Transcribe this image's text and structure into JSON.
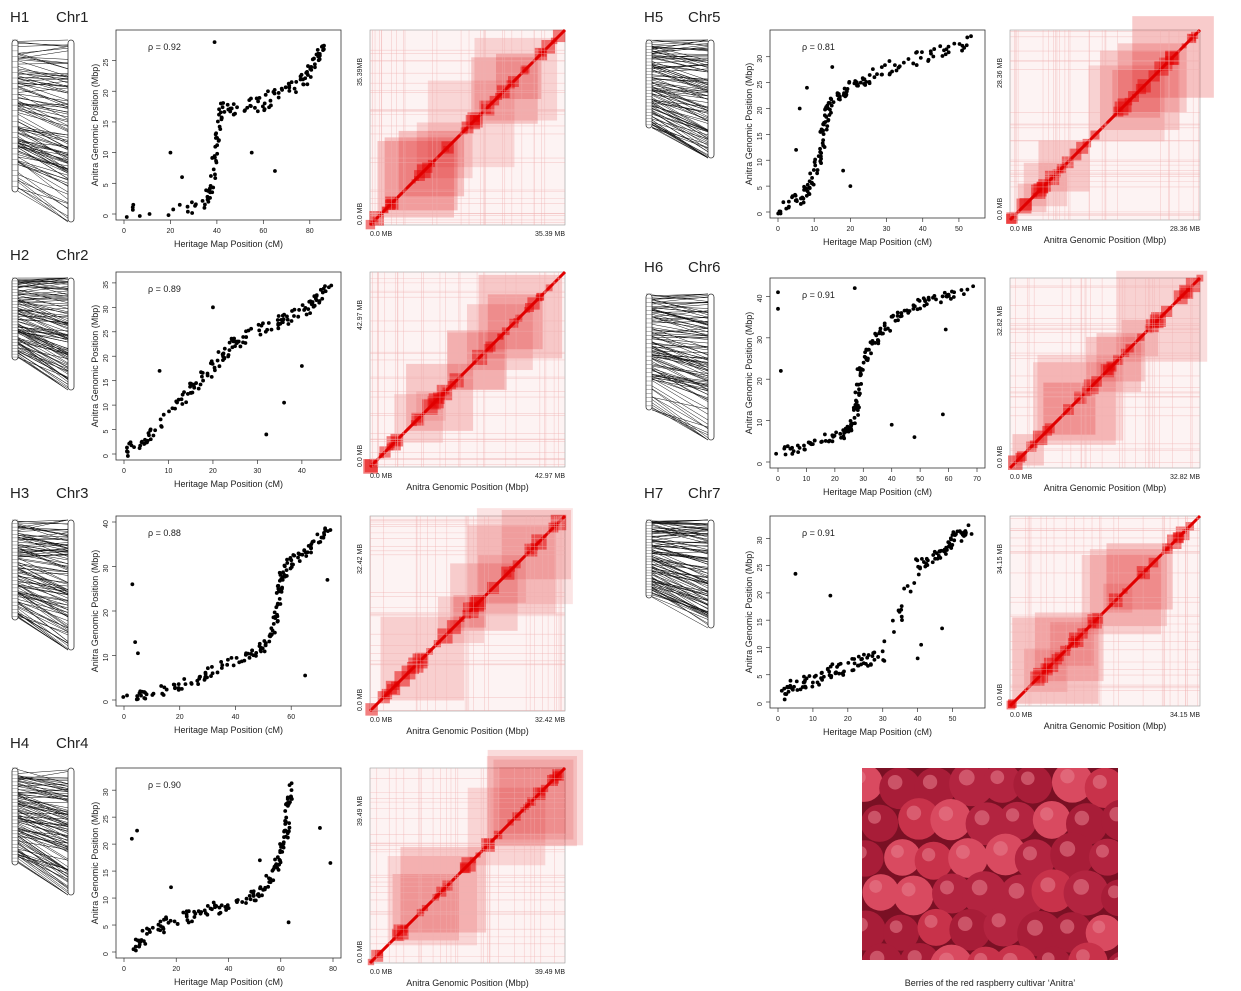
{
  "panels": [
    {
      "h": "H1",
      "chr": "Chr1",
      "rho": "ρ = 0.92",
      "mb": "35.39 MB",
      "mb_top": "35.39MB",
      "zero": "0.0 MB",
      "hic_xlabel": ""
    },
    {
      "h": "H2",
      "chr": "Chr2",
      "rho": "ρ = 0.89",
      "mb": "42.97 MB",
      "mb_top": "42.97 MB",
      "zero": "0.0 MB",
      "hic_xlabel": "Anitra Genomic Position (Mbp)"
    },
    {
      "h": "H3",
      "chr": "Chr3",
      "rho": "ρ = 0.88",
      "mb": "32.42 MB",
      "mb_top": "32.42 MB",
      "zero": "0.0 MB",
      "hic_xlabel": "Anitra Genomic Position (Mbp)"
    },
    {
      "h": "H4",
      "chr": "Chr4",
      "rho": "ρ = 0.90",
      "mb": "39.49 MB",
      "mb_top": "39.49 MB",
      "zero": "0.0 MB",
      "hic_xlabel": "Anitra Genomic Position (Mbp)"
    },
    {
      "h": "H5",
      "chr": "Chr5",
      "rho": "ρ = 0.81",
      "mb": "28.36 MB",
      "mb_top": "28.36 MB",
      "zero": "0.0 MB",
      "hic_xlabel": "Anitra Genomic Position (Mbp)"
    },
    {
      "h": "H6",
      "chr": "Chr6",
      "rho": "ρ = 0.91",
      "mb": "32.82 MB",
      "mb_top": "32.82 MB",
      "zero": "0.0 MB",
      "hic_xlabel": "Anitra Genomic Position (Mbp)"
    },
    {
      "h": "H7",
      "chr": "Chr7",
      "rho": "ρ = 0.91",
      "mb": "34.15 MB",
      "mb_top": "34.15 MB",
      "zero": "0.0 MB",
      "hic_xlabel": "Anitra Genomic Position (Mbp)"
    }
  ],
  "photo_caption": "Berries of the red raspberry cultivar ‘Anitra’",
  "chart_data": [
    {
      "type": "scatter",
      "panel": "H1",
      "xlabel": "Heritage Map Position (cM)",
      "ylabel": "Anitra Genomic Position (Mbp)",
      "xlim": [
        0,
        90
      ],
      "ylim": [
        0,
        29
      ],
      "xticks": [
        0,
        20,
        40,
        60,
        80
      ],
      "yticks": [
        0,
        5,
        10,
        15,
        20,
        25
      ],
      "trend": [
        [
          0,
          0
        ],
        [
          35,
          1
        ],
        [
          38,
          5
        ],
        [
          40,
          12
        ],
        [
          42,
          17
        ],
        [
          50,
          17.5
        ],
        [
          60,
          18
        ],
        [
          70,
          20
        ],
        [
          78,
          22
        ],
        [
          82,
          25
        ],
        [
          86,
          27
        ]
      ],
      "outliers": [
        [
          4,
          1.5
        ],
        [
          11,
          0
        ],
        [
          20,
          10
        ],
        [
          25,
          6
        ],
        [
          39,
          28
        ],
        [
          55,
          10
        ],
        [
          62,
          20
        ],
        [
          65,
          7
        ]
      ]
    },
    {
      "type": "scatter",
      "panel": "H2",
      "xlabel": "Heritage Map Position (cM)",
      "ylabel": "Anitra Genomic Position (Mbp)",
      "xlim": [
        0,
        47
      ],
      "ylim": [
        0,
        36
      ],
      "xticks": [
        0,
        10,
        20,
        30,
        40
      ],
      "yticks": [
        0,
        5,
        10,
        15,
        20,
        25,
        30,
        35
      ],
      "trend": [
        [
          0,
          0
        ],
        [
          5,
          3
        ],
        [
          10,
          8
        ],
        [
          15,
          13
        ],
        [
          18,
          16
        ],
        [
          22,
          20
        ],
        [
          25,
          23
        ],
        [
          30,
          25
        ],
        [
          35,
          27
        ],
        [
          40,
          29
        ],
        [
          43,
          31
        ],
        [
          46,
          34
        ]
      ],
      "outliers": [
        [
          20,
          30
        ],
        [
          32,
          4
        ],
        [
          36,
          10.5
        ],
        [
          40,
          18
        ],
        [
          8,
          17
        ]
      ]
    },
    {
      "type": "scatter",
      "panel": "H3",
      "xlabel": "Heritage Map Position (cM)",
      "ylabel": "Anitra Genomic Position (Mbp)",
      "xlim": [
        0,
        75
      ],
      "ylim": [
        0,
        40
      ],
      "xticks": [
        0,
        20,
        40,
        60
      ],
      "yticks": [
        0,
        10,
        20,
        30,
        40
      ],
      "trend": [
        [
          0,
          0
        ],
        [
          10,
          1.5
        ],
        [
          20,
          3
        ],
        [
          30,
          6
        ],
        [
          40,
          9
        ],
        [
          48,
          11
        ],
        [
          53,
          14
        ],
        [
          55,
          20
        ],
        [
          56,
          26
        ],
        [
          58,
          30
        ],
        [
          62,
          32
        ],
        [
          68,
          35
        ],
        [
          74,
          38
        ]
      ],
      "outliers": [
        [
          3,
          26
        ],
        [
          4,
          13
        ],
        [
          5,
          10.5
        ],
        [
          65,
          5.5
        ],
        [
          73,
          27
        ]
      ]
    },
    {
      "type": "scatter",
      "panel": "H4",
      "xlabel": "Heritage Map Position (cM)",
      "ylabel": "Anitra Genomic Position (Mbp)",
      "xlim": [
        0,
        80
      ],
      "ylim": [
        0,
        33
      ],
      "xticks": [
        0,
        20,
        40,
        60,
        80
      ],
      "yticks": [
        0,
        5,
        10,
        15,
        20,
        25,
        30
      ],
      "trend": [
        [
          4,
          1
        ],
        [
          8,
          3
        ],
        [
          15,
          5
        ],
        [
          25,
          6.5
        ],
        [
          35,
          8
        ],
        [
          45,
          9.5
        ],
        [
          52,
          11
        ],
        [
          57,
          14
        ],
        [
          60,
          18
        ],
        [
          62,
          22
        ],
        [
          63,
          27
        ],
        [
          64,
          31
        ]
      ],
      "outliers": [
        [
          3,
          21
        ],
        [
          5,
          22.5
        ],
        [
          18,
          12
        ],
        [
          52,
          17
        ],
        [
          75,
          23
        ],
        [
          79,
          16.5
        ],
        [
          63,
          5.5
        ]
      ]
    },
    {
      "type": "scatter",
      "panel": "H5",
      "xlabel": "Heritage Map Position (cM)",
      "ylabel": "Anitra Genomic Position (Mbp)",
      "xlim": [
        0,
        55
      ],
      "ylim": [
        0,
        34
      ],
      "xticks": [
        0,
        10,
        20,
        30,
        40,
        50
      ],
      "yticks": [
        0,
        5,
        10,
        15,
        20,
        25,
        30
      ],
      "trend": [
        [
          0,
          0.5
        ],
        [
          5,
          2
        ],
        [
          8,
          4
        ],
        [
          10,
          7
        ],
        [
          12,
          12
        ],
        [
          13,
          18
        ],
        [
          14,
          21
        ],
        [
          18,
          23
        ],
        [
          22,
          25
        ],
        [
          28,
          27
        ],
        [
          35,
          29
        ],
        [
          45,
          31
        ],
        [
          53,
          33
        ]
      ],
      "outliers": [
        [
          6,
          20
        ],
        [
          8,
          24
        ],
        [
          5,
          12
        ],
        [
          18,
          8
        ],
        [
          20,
          5
        ],
        [
          15,
          28
        ],
        [
          3,
          2
        ]
      ]
    },
    {
      "type": "scatter",
      "panel": "H6",
      "xlabel": "Heritage Map Position (cM)",
      "ylabel": "Anitra Genomic Position (Mbp)",
      "xlim": [
        0,
        70
      ],
      "ylim": [
        0,
        43
      ],
      "xticks": [
        0,
        10,
        20,
        30,
        40,
        50,
        60,
        70
      ],
      "yticks": [
        0,
        10,
        20,
        30,
        40
      ],
      "trend": [
        [
          0,
          2
        ],
        [
          10,
          4
        ],
        [
          18,
          6
        ],
        [
          24,
          7
        ],
        [
          27,
          10
        ],
        [
          28,
          15
        ],
        [
          29,
          22
        ],
        [
          32,
          27
        ],
        [
          36,
          31
        ],
        [
          42,
          35
        ],
        [
          50,
          38
        ],
        [
          58,
          40
        ],
        [
          68,
          42
        ]
      ],
      "outliers": [
        [
          0,
          41
        ],
        [
          0,
          37
        ],
        [
          1,
          22
        ],
        [
          40,
          9
        ],
        [
          48,
          6
        ],
        [
          58,
          11.5
        ],
        [
          27,
          42
        ],
        [
          59,
          32
        ]
      ]
    },
    {
      "type": "scatter",
      "panel": "H7",
      "xlabel": "Heritage Map Position (cM)",
      "ylabel": "Anitra Genomic Position (Mbp)",
      "xlim": [
        0,
        57
      ],
      "ylim": [
        0,
        33
      ],
      "xticks": [
        0,
        10,
        20,
        30,
        40,
        50
      ],
      "yticks": [
        0,
        5,
        10,
        15,
        20,
        25,
        30
      ],
      "trend": [
        [
          1,
          1.5
        ],
        [
          5,
          3
        ],
        [
          10,
          4
        ],
        [
          15,
          5.5
        ],
        [
          20,
          6.5
        ],
        [
          25,
          7.5
        ],
        [
          30,
          8.5
        ],
        [
          40,
          25
        ],
        [
          45,
          27
        ],
        [
          48,
          28.5
        ],
        [
          51,
          30
        ],
        [
          55,
          31.5
        ]
      ],
      "outliers": [
        [
          5,
          23.5
        ],
        [
          15,
          19.5
        ],
        [
          40,
          8
        ],
        [
          41,
          10.5
        ],
        [
          47,
          13.5
        ]
      ]
    }
  ]
}
